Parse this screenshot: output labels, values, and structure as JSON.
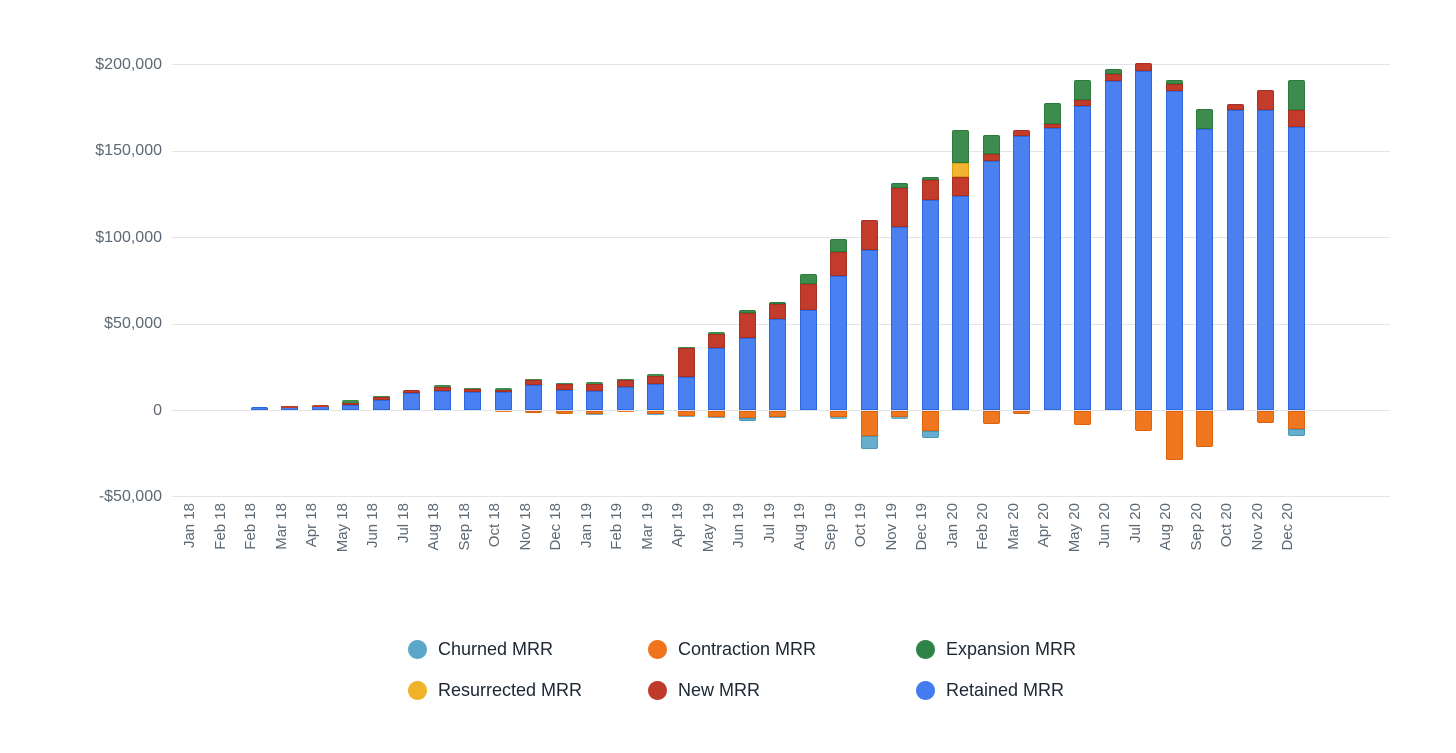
{
  "page": {
    "background": "#ffffff"
  },
  "chart_data": {
    "type": "bar",
    "stacked": true,
    "title": "",
    "xlabel": "",
    "ylabel": "",
    "ylim": [
      -50000,
      215000
    ],
    "grid": true,
    "legend_position": "bottom",
    "categories": [
      "Jan 18",
      "Feb 18",
      "Feb 18",
      "Mar 18",
      "Apr 18",
      "May 18",
      "Jun 18",
      "Jul 18",
      "Aug 18",
      "Sep 18",
      "Oct 18",
      "Nov 18",
      "Dec 18",
      "Jan 19",
      "Feb 19",
      "Mar 19",
      "Apr 19",
      "May 19",
      "Jun 19",
      "Jul 19",
      "Aug 19",
      "Sep 19",
      "Oct 19",
      "Nov 19",
      "Dec 19",
      "Jan 20",
      "Feb 20",
      "Mar 20",
      "Apr 20",
      "May 20",
      "Jun 20",
      "Jul 20",
      "Aug 20",
      "Sep 20",
      "Oct 20",
      "Nov 20",
      "Dec 20"
    ],
    "y_ticks": [
      {
        "value": 200000,
        "label": "$200,000"
      },
      {
        "value": 150000,
        "label": "$150,000"
      },
      {
        "value": 100000,
        "label": "$100,000"
      },
      {
        "value": 50000,
        "label": "$50,000"
      },
      {
        "value": 0,
        "label": "0"
      },
      {
        "value": -50000,
        "label": "-$50,000"
      }
    ],
    "series": [
      {
        "name": "Retained MRR",
        "color": "#4A80EF",
        "border": "#2D68E0",
        "values": [
          0,
          0,
          2000,
          2400,
          2700,
          2900,
          6300,
          10000,
          11500,
          10500,
          10500,
          15000,
          12000,
          11500,
          13500,
          15500,
          19500,
          36000,
          42000,
          53000,
          58000,
          78000,
          93000,
          106000,
          122000,
          124000,
          144500,
          159000,
          163500,
          176000,
          190500,
          196500,
          185000,
          163000,
          174000,
          174000,
          164000
        ]
      },
      {
        "name": "New MRR",
        "color": "#C23B2B",
        "border": "#A93123",
        "values": [
          0,
          0,
          0,
          200,
          200,
          1700,
          1800,
          1800,
          2000,
          1800,
          1500,
          2500,
          3500,
          4000,
          4000,
          4500,
          16500,
          8500,
          14500,
          8500,
          15000,
          14000,
          17500,
          22500,
          11500,
          11000,
          4000,
          3500,
          2500,
          3500,
          4000,
          4500,
          4000,
          0,
          3500,
          11500,
          10000
        ]
      },
      {
        "name": "Resurrected MRR",
        "color": "#F2B431",
        "border": "#DC9E14",
        "values": [
          0,
          0,
          0,
          0,
          0,
          0,
          0,
          0,
          0,
          0,
          0,
          0,
          0,
          0,
          0,
          0,
          0,
          0,
          0,
          0,
          0,
          0,
          0,
          0,
          0,
          8500,
          0,
          0,
          0,
          0,
          0,
          0,
          0,
          0,
          0,
          0,
          0
        ]
      },
      {
        "name": "Expansion MRR",
        "color": "#3E8B4E",
        "border": "#2C7A3C",
        "values": [
          0,
          0,
          0,
          0,
          0,
          1200,
          500,
          0,
          1000,
          1000,
          1000,
          800,
          500,
          1000,
          1000,
          1200,
          1000,
          1000,
          1500,
          1500,
          6000,
          7500,
          0,
          3000,
          1500,
          19000,
          11000,
          0,
          12000,
          11500,
          3000,
          0,
          2500,
          11500,
          0,
          0,
          17500
        ]
      },
      {
        "name": "Contraction MRR",
        "color": "#F0761F",
        "border": "#DE630D",
        "values": [
          0,
          0,
          0,
          0,
          0,
          0,
          0,
          0,
          0,
          0,
          -1000,
          -1500,
          -2000,
          -2000,
          -1000,
          -2000,
          -3000,
          -3500,
          -4500,
          -3500,
          0,
          -3500,
          -15000,
          -3700,
          -12000,
          0,
          -8000,
          -2000,
          0,
          -8500,
          0,
          -12000,
          -28500,
          -21000,
          0,
          -7000,
          -10500
        ]
      },
      {
        "name": "Churned MRR",
        "color": "#66AECB",
        "border": "#4898BB",
        "values": [
          0,
          0,
          0,
          0,
          0,
          0,
          0,
          0,
          0,
          0,
          0,
          0,
          0,
          -700,
          0,
          -500,
          -700,
          -1000,
          -1500,
          -1000,
          0,
          -1300,
          -7500,
          -1300,
          -4000,
          0,
          0,
          0,
          0,
          0,
          0,
          0,
          0,
          0,
          0,
          0,
          -4500
        ]
      }
    ],
    "positive_stack_order": [
      "Retained MRR",
      "New MRR",
      "Resurrected MRR",
      "Expansion MRR"
    ],
    "negative_stack_order": [
      "Contraction MRR",
      "Churned MRR"
    ]
  },
  "legend": {
    "items": [
      {
        "label": "Churned MRR",
        "color": "#5BA7C9"
      },
      {
        "label": "Contraction MRR",
        "color": "#F0741E"
      },
      {
        "label": "Expansion MRR",
        "color": "#2E8446"
      },
      {
        "label": "Resurrected MRR",
        "color": "#EFB229"
      },
      {
        "label": "New MRR",
        "color": "#C03A2B"
      },
      {
        "label": "Retained MRR",
        "color": "#437CF0"
      }
    ]
  }
}
